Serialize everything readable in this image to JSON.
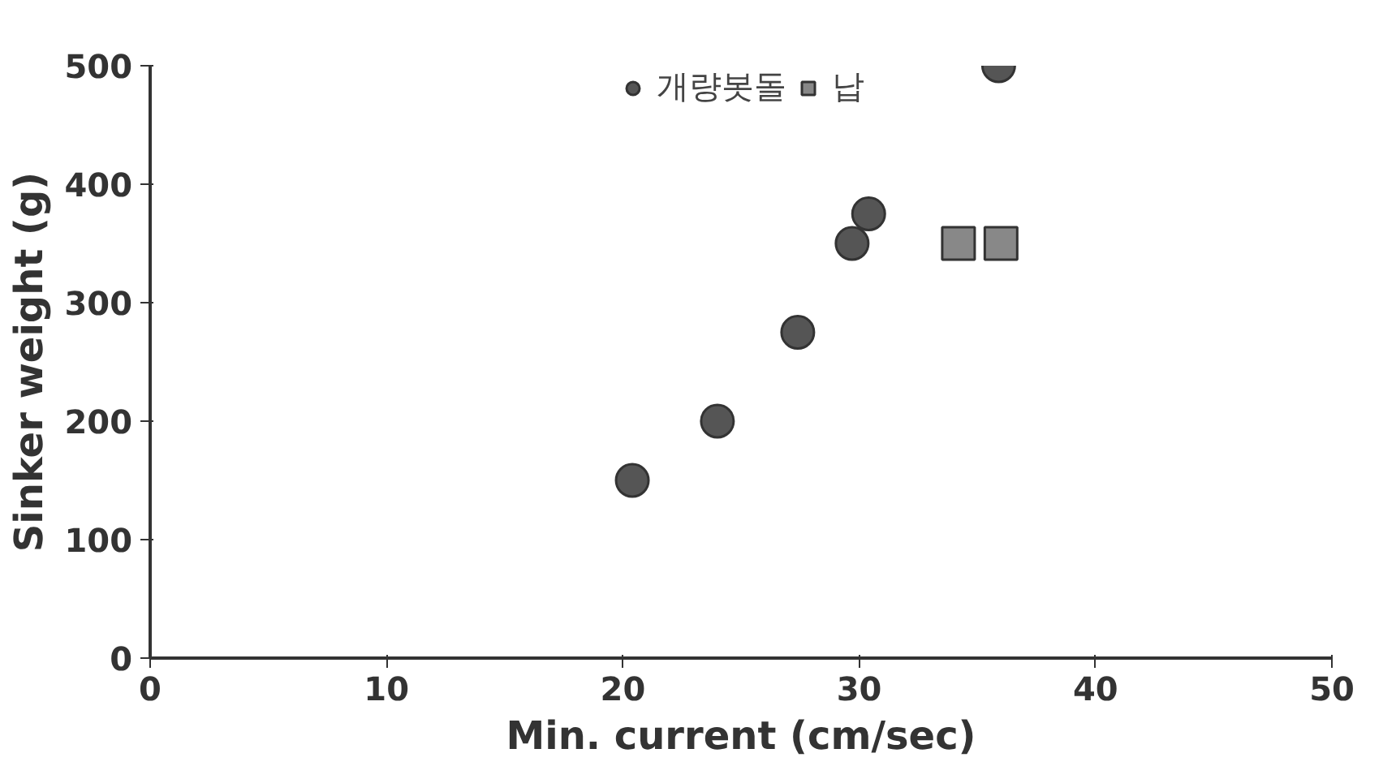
{
  "chart_data": {
    "type": "scatter",
    "xlabel": "Min. current (cm/sec)",
    "ylabel": "Sinker weight (g)",
    "xlim": [
      0,
      50
    ],
    "xticks": [
      0,
      10,
      20,
      30,
      40,
      50
    ],
    "ylim": [
      0,
      500
    ],
    "yticks": [
      0,
      100,
      200,
      300,
      400,
      500
    ],
    "grid": false,
    "legend": "top",
    "series": [
      {
        "name": "개량봇돌",
        "color": "#555555",
        "marker": "circle",
        "x": [
          20.4,
          24.0,
          27.4,
          29.7,
          30.4,
          35.9
        ],
        "values": [
          150,
          200,
          275,
          350,
          375,
          500
        ]
      },
      {
        "name": "납",
        "color": "#888888",
        "marker": "square",
        "x": [
          34.2,
          36.0
        ],
        "values": [
          350,
          350
        ]
      }
    ]
  }
}
